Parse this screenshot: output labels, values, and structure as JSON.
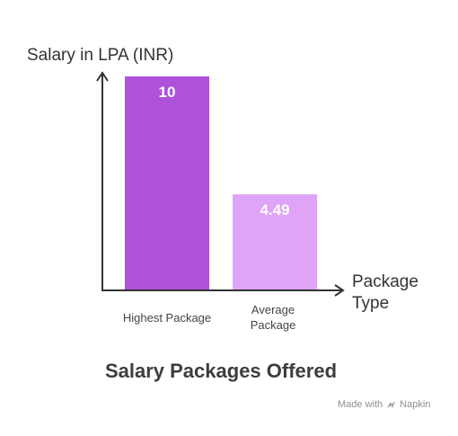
{
  "chart_data": {
    "type": "bar",
    "title": "Salary Packages Offered",
    "ylabel": "Salary in LPA (INR)",
    "xlabel": "Package Type",
    "categories": [
      "Highest Package",
      "Average Package"
    ],
    "values": [
      10,
      4.49
    ],
    "data_labels": [
      "10",
      "4.49"
    ],
    "ylim": [
      0,
      10
    ],
    "grid": false,
    "legend": "none",
    "colors": [
      "#ad52d9",
      "#dfa3f8"
    ],
    "label_colors": [
      "#ffffff",
      "#ffffff"
    ],
    "axis_color": "#333333"
  },
  "footer": {
    "made_with": "Made with",
    "brand": "Napkin",
    "brand_icon": "napkin-logo-icon"
  }
}
